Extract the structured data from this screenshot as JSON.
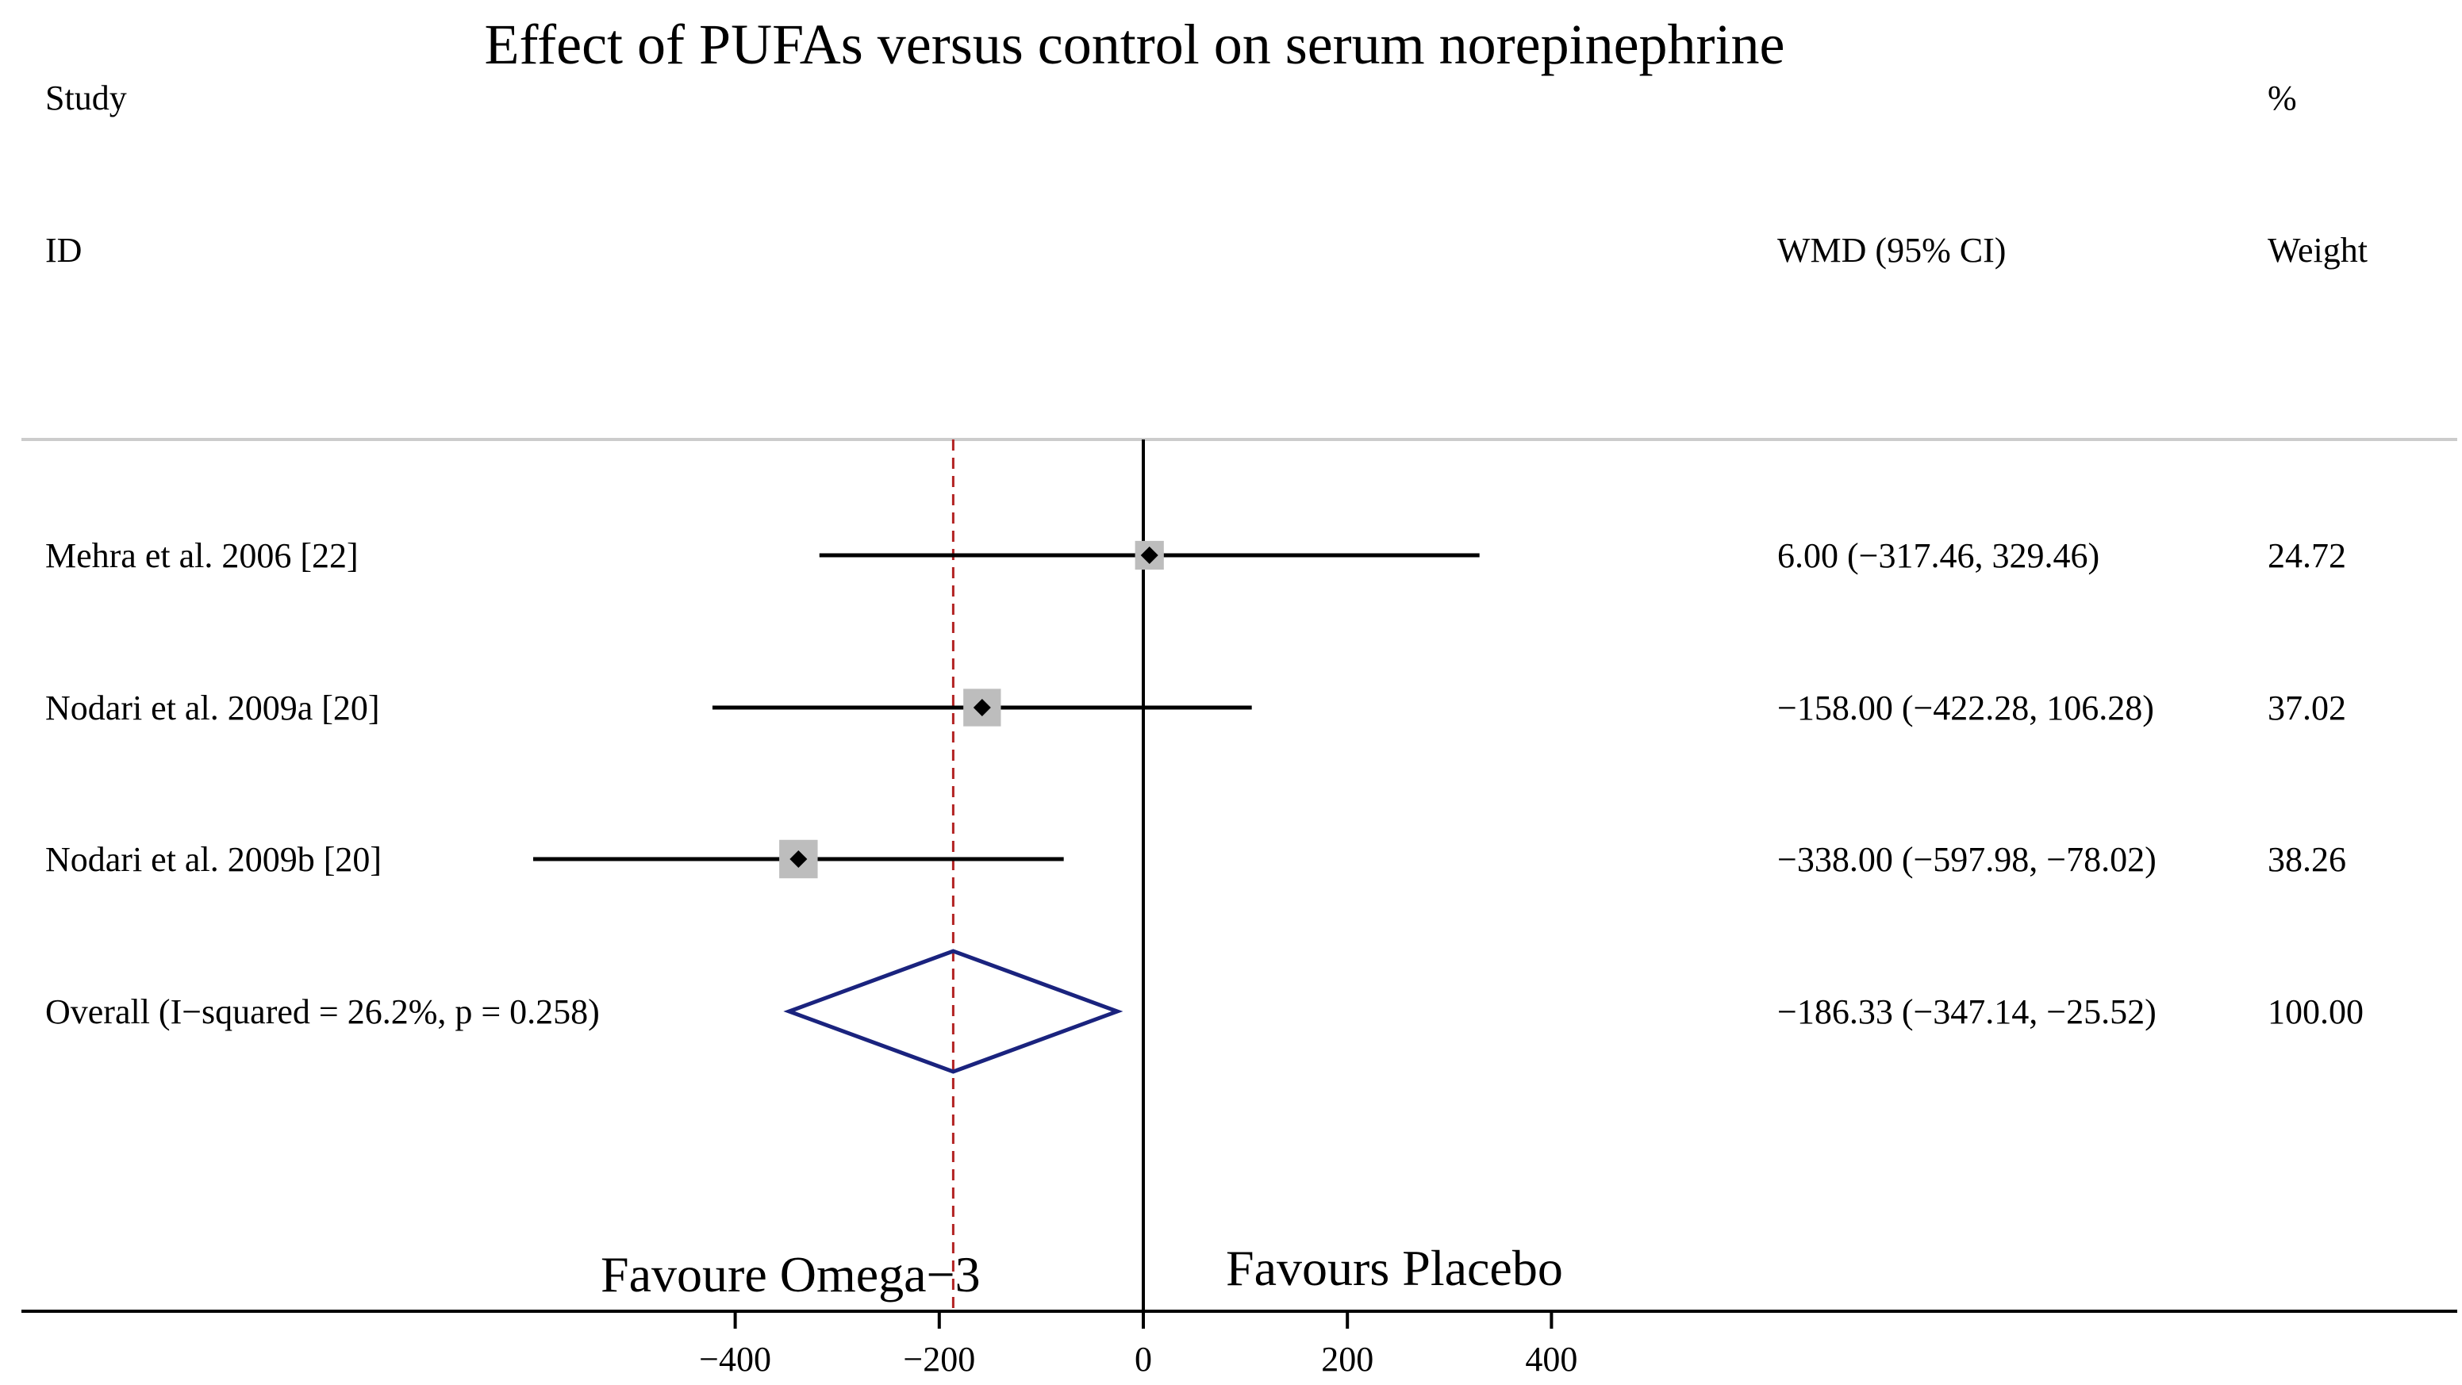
{
  "chart_data": {
    "type": "forest",
    "title": "Effect of PUFAs versus control on serum norepinephrine",
    "headers": {
      "study_line1": "Study",
      "study_line2": "ID",
      "effect": "WMD (95% CI)",
      "weight_line1": "%",
      "weight_line2": "Weight"
    },
    "studies": [
      {
        "label": "Mehra et al. 2006 [22]",
        "estimate": 6.0,
        "ci_low": -317.46,
        "ci_high": 329.46,
        "effect_text": "6.00 (−317.46, 329.46)",
        "weight": 24.72,
        "weight_text": "24.72"
      },
      {
        "label": "Nodari et al. 2009a [20]",
        "estimate": -158.0,
        "ci_low": -422.28,
        "ci_high": 106.28,
        "effect_text": "−158.00 (−422.28, 106.28)",
        "weight": 37.02,
        "weight_text": "37.02"
      },
      {
        "label": "Nodari et al. 2009b [20]",
        "estimate": -338.0,
        "ci_low": -597.98,
        "ci_high": -78.02,
        "effect_text": "−338.00 (−597.98, −78.02)",
        "weight": 38.26,
        "weight_text": "38.26"
      }
    ],
    "overall": {
      "label": "Overall  (I−squared = 26.2%, p = 0.258)",
      "estimate": -186.33,
      "ci_low": -347.14,
      "ci_high": -25.52,
      "effect_text": "−186.33 (−347.14, −25.52)",
      "weight_text": "100.00"
    },
    "xticks": [
      -400,
      -200,
      0,
      200,
      400
    ],
    "xtick_labels": [
      "−400",
      "−200",
      "0",
      "200",
      "400"
    ],
    "null_line": 0,
    "favours_left": "Favoure Omega−3",
    "favours_right": "Favours Placebo",
    "colors": {
      "diamond": "#1a237e",
      "overall_line": "#b22222",
      "box": "#bdbdbd",
      "rule": "#cccccc"
    }
  }
}
